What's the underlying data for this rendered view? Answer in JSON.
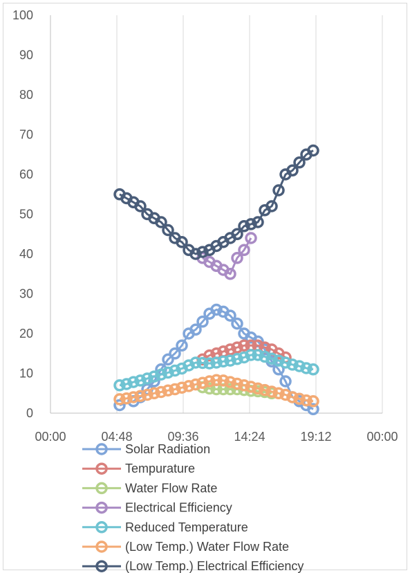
{
  "chart_data": {
    "type": "line",
    "title": "",
    "xlabel": "",
    "ylabel": "",
    "ylim": [
      0,
      100
    ],
    "xlim": [
      "00:00",
      "24:00"
    ],
    "yticks": [
      "0",
      "10",
      "20",
      "30",
      "40",
      "50",
      "60",
      "70",
      "80",
      "90",
      "100"
    ],
    "xticks": [
      "00:00",
      "04:48",
      "09:36",
      "14:24",
      "19:12",
      "00:00"
    ],
    "grid": "vertical gridlines only",
    "legend_position": "bottom",
    "series": [
      {
        "name": "Solar Radiation",
        "color": "#7fa5d9",
        "x": [
          "5:00",
          "6:00",
          "6:30",
          "7:00",
          "7:30",
          "8:00",
          "8:30",
          "9:00",
          "9:30",
          "10:00",
          "10:30",
          "11:00",
          "11:30",
          "12:00",
          "12:30",
          "13:00",
          "13:30",
          "14:00",
          "14:30",
          "15:00",
          "15:30",
          "16:00",
          "16:30",
          "17:00",
          "17:30",
          "18:00",
          "18:30",
          "19:00"
        ],
        "y": [
          2,
          3,
          4,
          6,
          8,
          11,
          13.5,
          15,
          17,
          20,
          21,
          23,
          25,
          26,
          25.5,
          24.5,
          22.5,
          20,
          19,
          18,
          16,
          13,
          11,
          8,
          4,
          3,
          2,
          1
        ]
      },
      {
        "name": "Tempurature",
        "color": "#d9807c",
        "x": [
          "11:00",
          "11:30",
          "12:00",
          "12:30",
          "13:00",
          "13:30",
          "14:00",
          "14:30",
          "15:00",
          "15:30",
          "16:00",
          "16:30",
          "17:00"
        ],
        "y": [
          13.5,
          14.5,
          15,
          15.5,
          16,
          16.5,
          17,
          17,
          17,
          16.5,
          16,
          15,
          14
        ]
      },
      {
        "name": "Water Flow Rate",
        "color": "#b5d28a",
        "x": [
          "11:00",
          "11:30",
          "12:00",
          "12:30",
          "13:00",
          "13:30",
          "14:00",
          "14:30",
          "15:00",
          "15:30",
          "16:00"
        ],
        "y": [
          6.5,
          6.2,
          6,
          6,
          6,
          6,
          5.8,
          5.6,
          5.5,
          5.3,
          5
        ]
      },
      {
        "name": "Electrical Efficiency",
        "color": "#a98bc4",
        "x": [
          "11:00",
          "11:30",
          "12:00",
          "12:30",
          "13:00",
          "13:30",
          "14:00",
          "14:30"
        ],
        "y": [
          39,
          38,
          37,
          36,
          35,
          39,
          41,
          44
        ]
      },
      {
        "name": "Reduced Temperature",
        "color": "#6fc3d2",
        "x": [
          "5:00",
          "5:30",
          "6:00",
          "6:30",
          "7:00",
          "7:30",
          "8:00",
          "8:30",
          "9:00",
          "9:30",
          "10:00",
          "10:30",
          "11:00",
          "11:30",
          "12:00",
          "12:30",
          "13:00",
          "13:30",
          "14:00",
          "14:30",
          "15:00",
          "15:30",
          "16:00",
          "16:30",
          "17:00",
          "17:30",
          "18:00",
          "18:30",
          "19:00"
        ],
        "y": [
          7,
          7.3,
          7.8,
          8.2,
          8.7,
          9.2,
          9.7,
          10.2,
          10.7,
          11.2,
          12,
          12.7,
          12.6,
          12.5,
          12.7,
          13,
          13.2,
          13.6,
          14,
          14.6,
          14.6,
          14.2,
          13.7,
          13.2,
          12.7,
          12.2,
          11.8,
          11.3,
          11
        ]
      },
      {
        "name": "(Low Temp.) Water Flow Rate",
        "color": "#f3aa74",
        "x": [
          "5:00",
          "5:30",
          "6:00",
          "6:30",
          "7:00",
          "7:30",
          "8:00",
          "8:30",
          "9:00",
          "9:30",
          "10:00",
          "10:30",
          "11:00",
          "11:30",
          "12:00",
          "12:30",
          "13:00",
          "13:30",
          "14:00",
          "14:30",
          "15:00",
          "15:30",
          "16:00",
          "16:30",
          "17:00",
          "17:30",
          "18:00",
          "18:30",
          "19:00"
        ],
        "y": [
          3.5,
          3.7,
          4,
          4.3,
          4.6,
          5,
          5.3,
          5.7,
          6,
          6.4,
          6.8,
          7.2,
          7.6,
          8,
          8.3,
          8.2,
          7.8,
          7.4,
          7,
          6.6,
          6.2,
          5.8,
          5.4,
          5,
          4.6,
          4,
          3.6,
          3.2,
          3
        ]
      },
      {
        "name": "(Low Temp.) Electrical Efficiency",
        "color": "#4a5d79",
        "x": [
          "5:00",
          "5:30",
          "6:00",
          "6:30",
          "7:00",
          "7:30",
          "8:00",
          "8:30",
          "9:00",
          "9:30",
          "10:00",
          "10:30",
          "11:00",
          "11:30",
          "12:00",
          "12:30",
          "13:00",
          "13:30",
          "14:00",
          "14:30",
          "15:00",
          "15:30",
          "16:00",
          "16:30",
          "17:00",
          "17:30",
          "18:00",
          "18:30",
          "19:00"
        ],
        "y": [
          55,
          54,
          53,
          52,
          50,
          49,
          48,
          46,
          44,
          43,
          41,
          40,
          40.5,
          41,
          42,
          43,
          44,
          45,
          47,
          47.5,
          48,
          51,
          52,
          56,
          60,
          61,
          63,
          65,
          66
        ]
      }
    ]
  }
}
